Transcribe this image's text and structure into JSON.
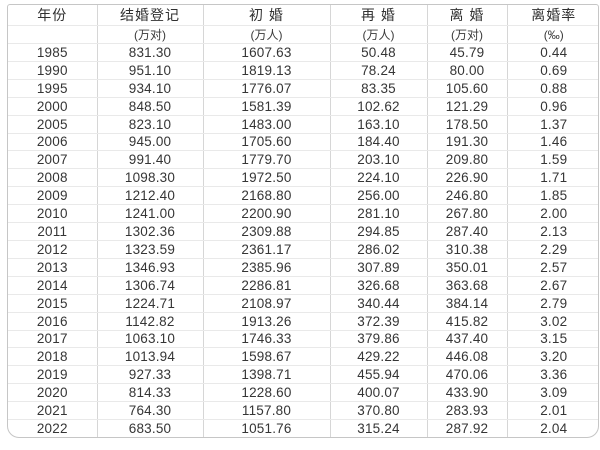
{
  "chart_data": {
    "type": "table",
    "columns": [
      {
        "label": "年份",
        "unit": ""
      },
      {
        "label": "结婚登记",
        "unit": "(万对)"
      },
      {
        "label": "初 婚",
        "unit": "(万人)"
      },
      {
        "label": "再 婚",
        "unit": "(万人)"
      },
      {
        "label": "离 婚",
        "unit": "(万对)"
      },
      {
        "label": "离婚率",
        "unit": "(‰)"
      }
    ],
    "rows": [
      [
        "1985",
        "831.30",
        "1607.63",
        "50.48",
        "45.79",
        "0.44"
      ],
      [
        "1990",
        "951.10",
        "1819.13",
        "78.24",
        "80.00",
        "0.69"
      ],
      [
        "1995",
        "934.10",
        "1776.07",
        "83.35",
        "105.60",
        "0.88"
      ],
      [
        "2000",
        "848.50",
        "1581.39",
        "102.62",
        "121.29",
        "0.96"
      ],
      [
        "2005",
        "823.10",
        "1483.00",
        "163.10",
        "178.50",
        "1.37"
      ],
      [
        "2006",
        "945.00",
        "1705.60",
        "184.40",
        "191.30",
        "1.46"
      ],
      [
        "2007",
        "991.40",
        "1779.70",
        "203.10",
        "209.80",
        "1.59"
      ],
      [
        "2008",
        "1098.30",
        "1972.50",
        "224.10",
        "226.90",
        "1.71"
      ],
      [
        "2009",
        "1212.40",
        "2168.80",
        "256.00",
        "246.80",
        "1.85"
      ],
      [
        "2010",
        "1241.00",
        "2200.90",
        "281.10",
        "267.80",
        "2.00"
      ],
      [
        "2011",
        "1302.36",
        "2309.88",
        "294.85",
        "287.40",
        "2.13"
      ],
      [
        "2012",
        "1323.59",
        "2361.17",
        "286.02",
        "310.38",
        "2.29"
      ],
      [
        "2013",
        "1346.93",
        "2385.96",
        "307.89",
        "350.01",
        "2.57"
      ],
      [
        "2014",
        "1306.74",
        "2286.81",
        "326.68",
        "363.68",
        "2.67"
      ],
      [
        "2015",
        "1224.71",
        "2108.97",
        "340.44",
        "384.14",
        "2.79"
      ],
      [
        "2016",
        "1142.82",
        "1913.26",
        "372.39",
        "415.82",
        "3.02"
      ],
      [
        "2017",
        "1063.10",
        "1746.33",
        "379.86",
        "437.40",
        "3.15"
      ],
      [
        "2018",
        "1013.94",
        "1598.67",
        "429.22",
        "446.08",
        "3.20"
      ],
      [
        "2019",
        "927.33",
        "1398.71",
        "455.94",
        "470.06",
        "3.36"
      ],
      [
        "2020",
        "814.33",
        "1228.60",
        "400.07",
        "433.90",
        "3.09"
      ],
      [
        "2021",
        "764.30",
        "1157.80",
        "370.80",
        "283.93",
        "2.01"
      ],
      [
        "2022",
        "683.50",
        "1051.76",
        "315.24",
        "287.92",
        "2.04"
      ]
    ]
  },
  "colors": {
    "background": "#ffffff",
    "card_border": "#c6c6c6",
    "grid_vertical": "#d6d6d6",
    "grid_horizontal": "#e9e9e9",
    "text": "#353535"
  }
}
